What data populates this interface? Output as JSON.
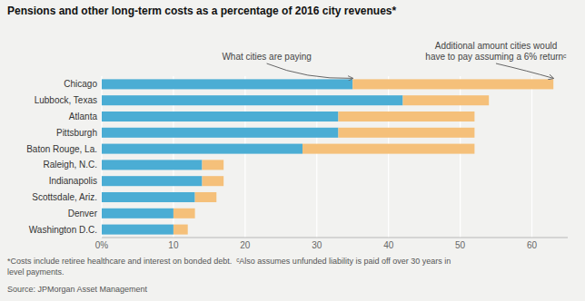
{
  "chart_data": {
    "type": "bar",
    "orientation": "horizontal",
    "stacked": true,
    "grid": true,
    "title": "Pensions and other long-term costs as a percentage of 2016 city revenues*",
    "categories": [
      "Chicago",
      "Lubbock, Texas",
      "Atlanta",
      "Pittsburgh",
      "Baton Rouge, La.",
      "Raleigh, N.C.",
      "Indianapolis",
      "Scottsdale, Ariz.",
      "Denver",
      "Washington D.C."
    ],
    "series": [
      {
        "color": "#4badd4",
        "values": [
          35,
          42,
          33,
          33,
          28,
          14,
          14,
          13,
          10,
          10
        ]
      },
      {
        "color": "#f5c07a",
        "values": [
          28,
          12,
          19,
          19,
          24,
          3,
          3,
          3,
          3,
          2
        ]
      }
    ],
    "xlim": [
      0,
      65
    ],
    "xticks": [
      {
        "value": 0,
        "label": "0%"
      },
      10,
      20,
      30,
      40,
      50,
      60
    ],
    "annotations": [
      "What cities are paying",
      "Additional amount cities would\nhave to pay assuming a 6% returnᶜ"
    ],
    "footnote": "*Costs include retiree healthcare and interest on bonded debt.  ᶜAlso assumes unfunded liability is paid off over 30 years in\nlevel payments.",
    "source": "Source: JPMorgan Asset Management"
  }
}
